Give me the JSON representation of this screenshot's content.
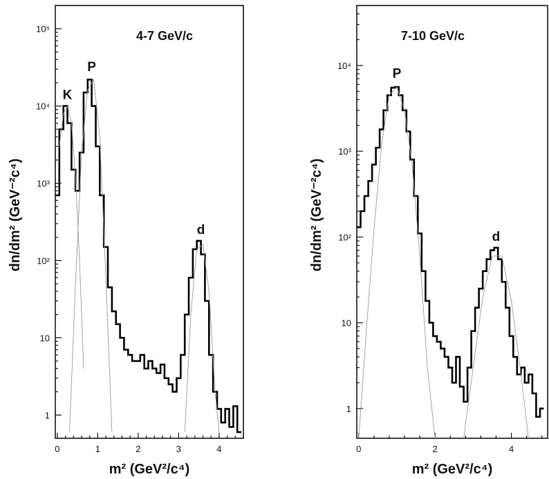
{
  "chart_data": [
    {
      "type": "line",
      "panel_label": "4-7 GeV/c",
      "xlabel": "m² (GeV²/c⁴)",
      "ylabel": "dn/dm² (GeV⁻²c⁴)",
      "log_y": true,
      "xlim": [
        -0.05,
        4.6
      ],
      "ylim": [
        0.5,
        200000
      ],
      "x_ticks": [
        0,
        1,
        2,
        3,
        4
      ],
      "y_ticks": [
        {
          "value": 1,
          "label": "1"
        },
        {
          "value": 10,
          "label": "10"
        },
        {
          "value": 100,
          "label": "10²"
        },
        {
          "value": 1000,
          "label": "10³"
        },
        {
          "value": 10000,
          "label": "10⁴"
        },
        {
          "value": 100000,
          "label": "10⁵"
        }
      ],
      "peak_labels": [
        {
          "text": "K",
          "x": 0.25,
          "y": 10000
        },
        {
          "text": "P",
          "x": 0.85,
          "y": 23000
        },
        {
          "text": "d",
          "x": 3.55,
          "y": 180
        }
      ],
      "series": [
        {
          "kind": "histogram",
          "x": [
            0.0,
            0.1,
            0.2,
            0.3,
            0.4,
            0.5,
            0.6,
            0.7,
            0.8,
            0.9,
            1.0,
            1.1,
            1.2,
            1.3,
            1.4,
            1.5,
            1.6,
            1.7,
            1.8,
            1.9,
            2.0,
            2.1,
            2.2,
            2.3,
            2.4,
            2.5,
            2.6,
            2.7,
            2.8,
            2.9,
            3.0,
            3.1,
            3.2,
            3.3,
            3.4,
            3.5,
            3.6,
            3.7,
            3.8,
            3.9,
            4.0,
            4.1,
            4.2,
            4.3,
            4.4,
            4.5
          ],
          "y": [
            700,
            5000,
            10000,
            6000,
            1500,
            800,
            2500,
            15000,
            22000,
            10000,
            3000,
            700,
            150,
            45,
            22,
            15,
            10,
            7,
            6,
            5,
            5,
            6,
            4,
            5,
            4,
            3.5,
            4.5,
            3,
            2.5,
            2,
            3,
            6,
            20,
            60,
            140,
            180,
            120,
            30,
            6,
            2,
            1.2,
            0.8,
            1.2,
            0.7,
            1.3,
            0.6
          ]
        },
        {
          "kind": "fit-K",
          "x": [
            0.05,
            0.15,
            0.25,
            0.35,
            0.45,
            0.55,
            0.65
          ],
          "y": [
            3000,
            8000,
            10000,
            6000,
            1200,
            100,
            4
          ]
        },
        {
          "kind": "fit-P",
          "x": [
            0.3,
            0.45,
            0.6,
            0.75,
            0.9,
            1.05,
            1.2,
            1.35
          ],
          "y": [
            0.6,
            50,
            2500,
            16000,
            22000,
            4000,
            60,
            0.6
          ]
        },
        {
          "kind": "fit-d",
          "x": [
            3.15,
            3.3,
            3.45,
            3.6,
            3.75,
            3.9,
            4.0
          ],
          "y": [
            0.6,
            20,
            140,
            160,
            40,
            2,
            0.6
          ]
        }
      ]
    },
    {
      "type": "line",
      "panel_label": "7-10 GeV/c",
      "xlabel": "m² (GeV²/c⁴)",
      "ylabel": "dn/dm² (GeV⁻²c⁴)",
      "log_y": true,
      "xlim": [
        -0.05,
        4.95
      ],
      "ylim": [
        0.45,
        50000
      ],
      "x_ticks": [
        0,
        2,
        4
      ],
      "y_ticks": [
        {
          "value": 1,
          "label": "1"
        },
        {
          "value": 10,
          "label": "10"
        },
        {
          "value": 100,
          "label": "10²"
        },
        {
          "value": 1000,
          "label": "10³"
        },
        {
          "value": 10000,
          "label": "10⁴"
        }
      ],
      "peak_labels": [
        {
          "text": "P",
          "x": 1.0,
          "y": 6000
        },
        {
          "text": "d",
          "x": 3.6,
          "y": 75
        }
      ],
      "series": [
        {
          "kind": "histogram",
          "x": [
            0.0,
            0.1,
            0.2,
            0.3,
            0.4,
            0.5,
            0.6,
            0.7,
            0.8,
            0.9,
            1.0,
            1.1,
            1.2,
            1.3,
            1.4,
            1.5,
            1.6,
            1.7,
            1.8,
            1.9,
            2.0,
            2.1,
            2.2,
            2.3,
            2.4,
            2.5,
            2.6,
            2.7,
            2.8,
            2.9,
            3.0,
            3.1,
            3.2,
            3.3,
            3.4,
            3.5,
            3.6,
            3.7,
            3.8,
            3.9,
            4.0,
            4.1,
            4.2,
            4.3,
            4.4,
            4.5,
            4.6,
            4.7,
            4.8
          ],
          "y": [
            130,
            200,
            300,
            450,
            700,
            1100,
            1800,
            3000,
            4500,
            5500,
            5600,
            4500,
            3000,
            1700,
            800,
            300,
            110,
            40,
            18,
            10,
            7,
            6,
            5,
            4,
            3,
            2,
            4,
            1.8,
            1.2,
            3,
            8,
            15,
            25,
            40,
            55,
            70,
            75,
            55,
            30,
            15,
            7,
            4,
            2.5,
            3,
            2,
            2.5,
            1.5,
            0.8,
            1.0
          ]
        },
        {
          "kind": "fit-P",
          "x": [
            0.0,
            0.2,
            0.4,
            0.6,
            0.8,
            1.0,
            1.2,
            1.4,
            1.6,
            1.8,
            2.0
          ],
          "y": [
            0.45,
            8,
            120,
            1200,
            4500,
            5600,
            3000,
            700,
            60,
            3,
            0.45
          ]
        },
        {
          "kind": "fit-d",
          "x": [
            2.75,
            3.0,
            3.25,
            3.5,
            3.75,
            4.0,
            4.25,
            4.45
          ],
          "y": [
            0.45,
            3,
            20,
            60,
            60,
            18,
            2.5,
            0.45
          ]
        }
      ]
    }
  ]
}
